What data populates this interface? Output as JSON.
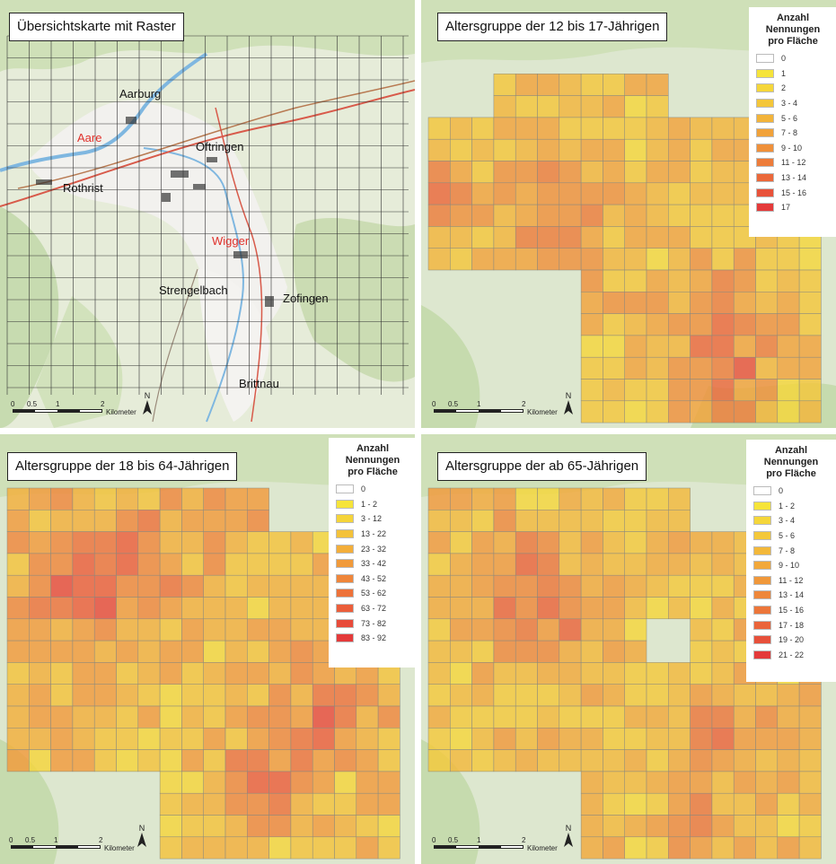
{
  "panels": [
    {
      "id": "overview",
      "title": "Übersichtskarte mit Raster",
      "places": [
        {
          "label": "Aarburg"
        },
        {
          "label": "Oftringen"
        },
        {
          "label": "Rothrist"
        },
        {
          "label": "Strengelbach"
        },
        {
          "label": "Zofingen"
        },
        {
          "label": "Brittnau"
        }
      ],
      "rivers": [
        {
          "label": "Aare"
        },
        {
          "label": "Wigger"
        }
      ]
    },
    {
      "id": "age-12-17",
      "title": "Altersgruppe der 12 bis 17-Jährigen",
      "legend": {
        "title": [
          "Anzahl",
          "Nennungen",
          "pro Fläche"
        ],
        "classes": [
          {
            "label": "0",
            "color": "#ffffff"
          },
          {
            "label": "1",
            "color": "#f6e43a"
          },
          {
            "label": "2",
            "color": "#f5d63a"
          },
          {
            "label": "3 - 4",
            "color": "#f4c63a"
          },
          {
            "label": "5 - 6",
            "color": "#f3b43a"
          },
          {
            "label": "7 - 8",
            "color": "#f1a23a"
          },
          {
            "label": "9 - 10",
            "color": "#ef903a"
          },
          {
            "label": "11 - 12",
            "color": "#ed7c3a"
          },
          {
            "label": "13 - 14",
            "color": "#eb683a"
          },
          {
            "label": "15 - 16",
            "color": "#e8523a"
          },
          {
            "label": "17",
            "color": "#e43a3a"
          }
        ]
      }
    },
    {
      "id": "age-18-64",
      "title": "Altersgruppe der 18 bis 64-Jährigen",
      "legend": {
        "title": [
          "Anzahl",
          "Nennungen",
          "pro Fläche"
        ],
        "classes": [
          {
            "label": "0",
            "color": "#ffffff"
          },
          {
            "label": "1 - 2",
            "color": "#f6e43a"
          },
          {
            "label": "3 - 12",
            "color": "#f5d43a"
          },
          {
            "label": "13 - 22",
            "color": "#f4c23a"
          },
          {
            "label": "23 - 32",
            "color": "#f3ae3a"
          },
          {
            "label": "33 - 42",
            "color": "#f19a3a"
          },
          {
            "label": "43 - 52",
            "color": "#ef863a"
          },
          {
            "label": "53 - 62",
            "color": "#ed723a"
          },
          {
            "label": "63 - 72",
            "color": "#eb5e3a"
          },
          {
            "label": "73 - 82",
            "color": "#e84b3a"
          },
          {
            "label": "83 - 92",
            "color": "#e43a3a"
          }
        ]
      }
    },
    {
      "id": "age-65-plus",
      "title": "Altersgruppe der ab 65-Jährigen",
      "legend": {
        "title": [
          "Anzahl",
          "Nennungen",
          "pro Fläche"
        ],
        "classes": [
          {
            "label": "0",
            "color": "#ffffff"
          },
          {
            "label": "1 - 2",
            "color": "#f6e43a"
          },
          {
            "label": "3 - 4",
            "color": "#f5d63a"
          },
          {
            "label": "5 - 6",
            "color": "#f4c83a"
          },
          {
            "label": "7 - 8",
            "color": "#f3b83a"
          },
          {
            "label": "9 - 10",
            "color": "#f2a83a"
          },
          {
            "label": "11 - 12",
            "color": "#f0983a"
          },
          {
            "label": "13 - 14",
            "color": "#ee873a"
          },
          {
            "label": "15 - 16",
            "color": "#ec763a"
          },
          {
            "label": "17 - 18",
            "color": "#ea643a"
          },
          {
            "label": "19 - 20",
            "color": "#e7503a"
          },
          {
            "label": "21 - 22",
            "color": "#e43a3a"
          }
        ]
      }
    }
  ],
  "scalebar": {
    "ticks": [
      "0",
      "0.5",
      "1",
      "2"
    ],
    "unit": "Kilometer"
  },
  "north_label": "N"
}
